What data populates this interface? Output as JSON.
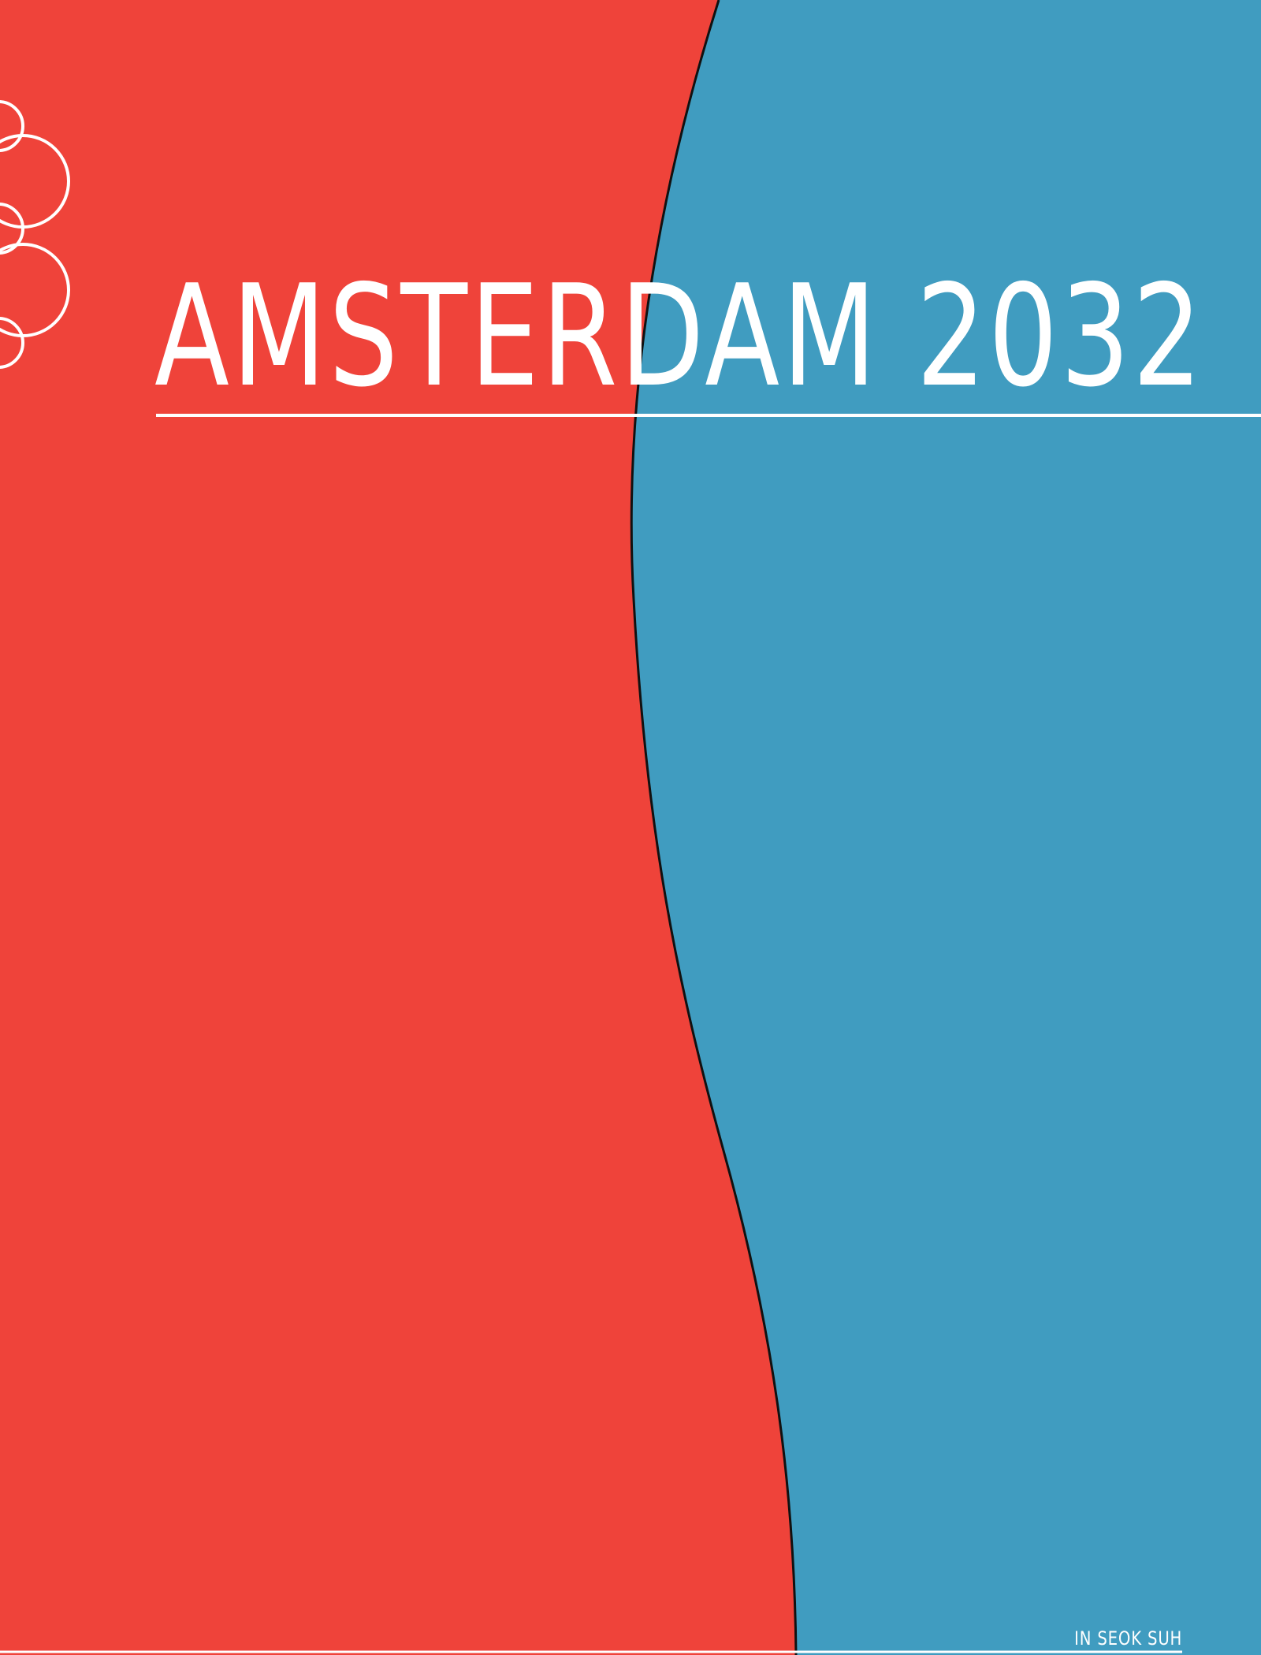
{
  "poster": {
    "title": "AMSTERDAM 2032",
    "author": "IN SEOK SUH"
  },
  "colors": {
    "red": "#EF433A",
    "blue": "#409CC0",
    "line": "#ffffff",
    "edge": "#111111"
  },
  "icons": {
    "emblem": "overlapping-rings-icon"
  }
}
